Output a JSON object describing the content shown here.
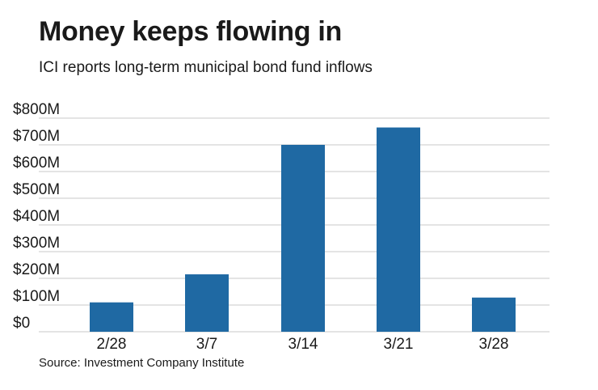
{
  "chart_data": {
    "type": "bar",
    "title": "Money keeps flowing in",
    "subtitle": "ICI reports long-term municipal bond fund inflows",
    "source": "Source: Investment Company Institute",
    "categories": [
      "2/28",
      "3/7",
      "3/14",
      "3/21",
      "3/28"
    ],
    "values": [
      110,
      215,
      700,
      765,
      128
    ],
    "unit": "M",
    "ylim": [
      0,
      800
    ],
    "yticks": [
      "$0",
      "$100M",
      "$200M",
      "$300M",
      "$400M",
      "$500M",
      "$600M",
      "$700M",
      "$800M"
    ],
    "grid": true,
    "legend": "none",
    "bar_color": "#1f69a3",
    "grid_color": "#c8c8c8"
  }
}
